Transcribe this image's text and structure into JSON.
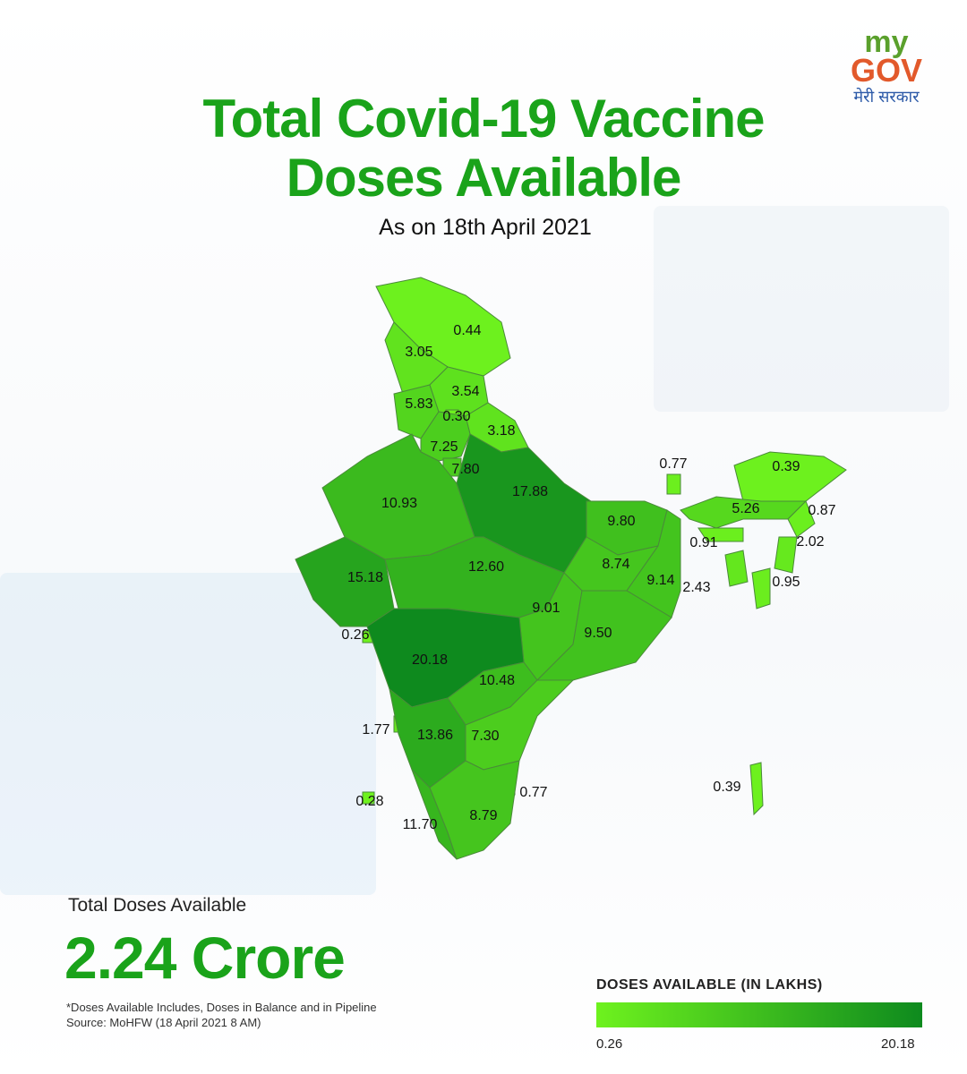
{
  "logo": {
    "top": "my",
    "bottom": "GOV",
    "hindi": "मेरी सरकार"
  },
  "title": "Total Covid-19 Vaccine Doses Available",
  "subtitle": "As on 18th April 2021",
  "map": {
    "values": [
      0.44,
      3.05,
      5.83,
      3.54,
      0.3,
      3.18,
      7.25,
      7.8,
      10.93,
      17.88,
      9.8,
      15.18,
      12.6,
      8.74,
      9.14,
      9.01,
      9.5,
      0.26,
      20.18,
      10.48,
      1.77,
      13.86,
      7.3,
      0.28,
      0.77,
      11.7,
      8.79,
      0.77,
      0.39,
      5.26,
      0.87,
      0.91,
      2.02,
      2.43,
      0.95,
      0.39
    ],
    "value_labels": [
      "0.44",
      "3.05",
      "5.83",
      "3.54",
      "0.30",
      "3.18",
      "7.25",
      "7.80",
      "10.93",
      "17.88",
      "9.80",
      "15.18",
      "12.60",
      "8.74",
      "9.14",
      "9.01",
      "9.50",
      "0.26",
      "20.18",
      "10.48",
      "1.77",
      "13.86",
      "7.30",
      "0.28",
      "0.77",
      "11.70",
      "8.79",
      "0.77",
      "0.39",
      "5.26",
      "0.87",
      "0.91",
      "2.02",
      "2.43",
      "0.95",
      "0.39"
    ]
  },
  "legend": {
    "title": "DOSES AVAILABLE (IN LAKHS)",
    "min": 0.26,
    "max": 20.18,
    "min_label": "0.26",
    "max_label": "20.18",
    "colors": [
      "#6ef21e",
      "#0e8a1e"
    ]
  },
  "total": {
    "label": "Total Doses Available",
    "value": "2.24 Crore"
  },
  "footnote": "*Doses Available Includes, Doses in Balance and in Pipeline",
  "source": "Source: MoHFW (18 April 2021 8 AM)"
}
